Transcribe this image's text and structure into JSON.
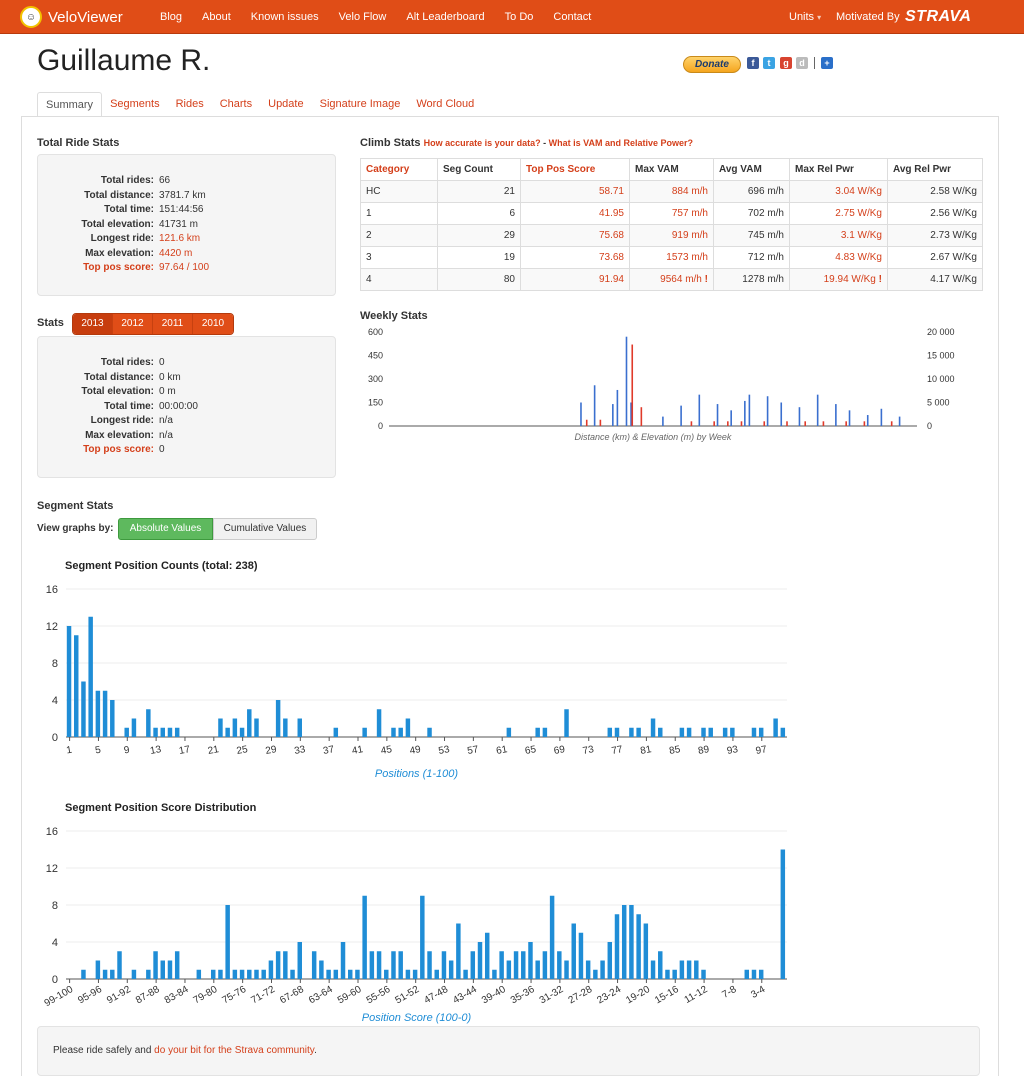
{
  "nav": {
    "brand": "VeloViewer",
    "items": [
      "Blog",
      "About",
      "Known issues",
      "Velo Flow",
      "Alt Leaderboard",
      "To Do",
      "Contact"
    ],
    "units": "Units",
    "motivated": "Motivated By",
    "strava": "STRAVA"
  },
  "page": {
    "title": "Guillaume R.",
    "donate": "Donate"
  },
  "tabs": [
    "Summary",
    "Segments",
    "Rides",
    "Charts",
    "Update",
    "Signature Image",
    "Word Cloud"
  ],
  "total_ride_stats": {
    "heading": "Total Ride Stats",
    "rows": [
      {
        "label": "Total rides:",
        "value": "66"
      },
      {
        "label": "Total distance:",
        "value": "3781.7 km"
      },
      {
        "label": "Total time:",
        "value": "151:44:56"
      },
      {
        "label": "Total elevation:",
        "value": "41731 m"
      },
      {
        "label": "Longest ride:",
        "value": "121.6 km"
      },
      {
        "label": "Max elevation:",
        "value": "4420 m"
      },
      {
        "label": "Top pos score:",
        "value": "97.64 / 100"
      }
    ]
  },
  "stats": {
    "heading": "Stats",
    "years": [
      "2013",
      "2012",
      "2011",
      "2010"
    ],
    "rows": [
      {
        "label": "Total rides:",
        "value": "0"
      },
      {
        "label": "Total distance:",
        "value": "0 km"
      },
      {
        "label": "Total elevation:",
        "value": "0 m"
      },
      {
        "label": "Total time:",
        "value": "00:00:00"
      },
      {
        "label": "Longest ride:",
        "value": "n/a"
      },
      {
        "label": "Max elevation:",
        "value": "n/a"
      },
      {
        "label": "Top pos score:",
        "value": "0"
      }
    ]
  },
  "climb": {
    "heading": "Climb Stats",
    "link1": "How accurate is your data?",
    "sep": " - ",
    "link2": "What is VAM and Relative Power?",
    "headers": [
      "Category",
      "Seg Count",
      "Top Pos Score",
      "Max VAM",
      "Avg VAM",
      "Max Rel Pwr",
      "Avg Rel Pwr"
    ],
    "rows": [
      [
        "HC",
        "21",
        "58.71",
        "884 m/h",
        "696 m/h",
        "3.04 W/Kg",
        "2.58 W/Kg"
      ],
      [
        "1",
        "6",
        "41.95",
        "757 m/h",
        "702 m/h",
        "2.75 W/Kg",
        "2.56 W/Kg"
      ],
      [
        "2",
        "29",
        "75.68",
        "919 m/h",
        "745 m/h",
        "3.1 W/Kg",
        "2.73 W/Kg"
      ],
      [
        "3",
        "19",
        "73.68",
        "1573 m/h",
        "712 m/h",
        "4.83 W/Kg",
        "2.67 W/Kg"
      ],
      [
        "4",
        "80",
        "91.94",
        "9564 m/h",
        "1278 m/h",
        "19.94 W/Kg",
        "4.17 W/Kg"
      ]
    ]
  },
  "segment_stats": {
    "heading": "Segment Stats",
    "view_by": "View graphs by:",
    "absolute": "Absolute Values",
    "cumulative": "Cumulative Values"
  },
  "footer": {
    "prefix": "Please ride safely and ",
    "link": "do your bit for the Strava community",
    "suffix": "."
  },
  "chart_data": [
    {
      "type": "bar",
      "title": "Weekly Stats",
      "xlabel": "Distance (km) & Elevation (m) by Week",
      "ylim_left": [
        0,
        600
      ],
      "ylim_right": [
        0,
        20000
      ],
      "yticks_left": [
        "0",
        "150",
        "300",
        "450",
        "600"
      ],
      "yticks_right": [
        "0",
        "5 000",
        "10 000",
        "15 000",
        "20 000"
      ],
      "series": [
        {
          "color": "#3a6fcf",
          "values": [
            0,
            0,
            0,
            0,
            0,
            0,
            0,
            0,
            0,
            0,
            0,
            0,
            0,
            0,
            0,
            0,
            0,
            0,
            0,
            0,
            0,
            0,
            0,
            0,
            0,
            0,
            0,
            0,
            0,
            0,
            0,
            0,
            0,
            0,
            0,
            0,
            0,
            0,
            0,
            0,
            0,
            0,
            150,
            0,
            0,
            260,
            0,
            0,
            0,
            140,
            230,
            0,
            570,
            150,
            0,
            0,
            0,
            0,
            0,
            0,
            60,
            0,
            0,
            0,
            130,
            0,
            0,
            0,
            200,
            0,
            0,
            0,
            140,
            0,
            0,
            100,
            0,
            0,
            160,
            200,
            0,
            0,
            0,
            190,
            0,
            0,
            150,
            0,
            0,
            0,
            120,
            0,
            0,
            0,
            200,
            0,
            0,
            0,
            140,
            0,
            0,
            100,
            0,
            0,
            0,
            70,
            0,
            0,
            110,
            0,
            0,
            0,
            60,
            0,
            0,
            0
          ]
        },
        {
          "color": "#e03a2a",
          "values": [
            0,
            0,
            0,
            0,
            0,
            0,
            0,
            0,
            0,
            0,
            0,
            0,
            0,
            0,
            0,
            0,
            0,
            0,
            0,
            0,
            0,
            0,
            0,
            0,
            0,
            0,
            0,
            0,
            0,
            0,
            0,
            0,
            0,
            0,
            0,
            0,
            0,
            0,
            0,
            0,
            0,
            0,
            0,
            40,
            0,
            0,
            40,
            0,
            0,
            0,
            0,
            0,
            0,
            520,
            0,
            120,
            0,
            0,
            0,
            0,
            0,
            0,
            0,
            0,
            0,
            0,
            30,
            0,
            0,
            0,
            0,
            30,
            0,
            0,
            30,
            0,
            0,
            30,
            0,
            0,
            0,
            0,
            30,
            0,
            0,
            0,
            0,
            30,
            0,
            0,
            0,
            30,
            0,
            0,
            0,
            30,
            0,
            0,
            0,
            0,
            30,
            0,
            0,
            0,
            30,
            0,
            0,
            0,
            0,
            0,
            30,
            0,
            0,
            0,
            0,
            0
          ]
        }
      ]
    },
    {
      "type": "bar",
      "title": "Segment Position Counts (total: 238)",
      "xlabel": "Positions (1-100)",
      "ylim": [
        0,
        16
      ],
      "yticks": [
        "0",
        "4",
        "8",
        "12",
        "16"
      ],
      "xticks": [
        "1",
        "5",
        "9",
        "13",
        "17",
        "21",
        "25",
        "29",
        "33",
        "37",
        "41",
        "45",
        "49",
        "53",
        "57",
        "61",
        "65",
        "69",
        "73",
        "77",
        "81",
        "85",
        "89",
        "93",
        "97"
      ],
      "values": [
        12,
        11,
        6,
        13,
        5,
        5,
        4,
        0,
        1,
        2,
        0,
        3,
        1,
        1,
        1,
        1,
        0,
        0,
        0,
        0,
        0,
        2,
        1,
        2,
        1,
        3,
        2,
        0,
        0,
        4,
        2,
        0,
        2,
        0,
        0,
        0,
        0,
        1,
        0,
        0,
        0,
        1,
        0,
        3,
        0,
        1,
        1,
        2,
        0,
        0,
        1,
        0,
        0,
        0,
        0,
        0,
        0,
        0,
        0,
        0,
        0,
        1,
        0,
        0,
        0,
        1,
        1,
        0,
        0,
        3,
        0,
        0,
        0,
        0,
        0,
        1,
        1,
        0,
        1,
        1,
        0,
        2,
        1,
        0,
        0,
        1,
        1,
        0,
        1,
        1,
        0,
        1,
        1,
        0,
        0,
        1,
        1,
        0,
        2,
        1
      ]
    },
    {
      "type": "bar",
      "title": "Segment Position Score Distribution",
      "xlabel": "Position Score (100-0)",
      "ylim": [
        0,
        16
      ],
      "yticks": [
        "0",
        "4",
        "8",
        "12",
        "16"
      ],
      "xticks": [
        "99-100",
        "95-96",
        "91-92",
        "87-88",
        "83-84",
        "79-80",
        "75-76",
        "71-72",
        "67-68",
        "63-64",
        "59-60",
        "55-56",
        "51-52",
        "47-48",
        "43-44",
        "39-40",
        "35-36",
        "31-32",
        "27-28",
        "23-24",
        "19-20",
        "15-16",
        "11-12",
        "7-8",
        "3-4"
      ],
      "values": [
        0,
        0,
        1,
        0,
        2,
        1,
        1,
        3,
        0,
        1,
        0,
        1,
        3,
        2,
        2,
        3,
        0,
        0,
        1,
        0,
        1,
        1,
        8,
        1,
        1,
        1,
        1,
        1,
        2,
        3,
        3,
        1,
        4,
        0,
        3,
        2,
        1,
        1,
        4,
        1,
        1,
        9,
        3,
        3,
        1,
        3,
        3,
        1,
        1,
        9,
        3,
        1,
        3,
        2,
        6,
        1,
        3,
        4,
        5,
        1,
        3,
        2,
        3,
        3,
        4,
        2,
        3,
        9,
        3,
        2,
        6,
        5,
        2,
        1,
        2,
        4,
        7,
        8,
        8,
        7,
        6,
        2,
        3,
        1,
        1,
        2,
        2,
        2,
        1,
        0,
        0,
        0,
        0,
        0,
        1,
        1,
        1,
        0,
        0,
        14
      ]
    }
  ]
}
